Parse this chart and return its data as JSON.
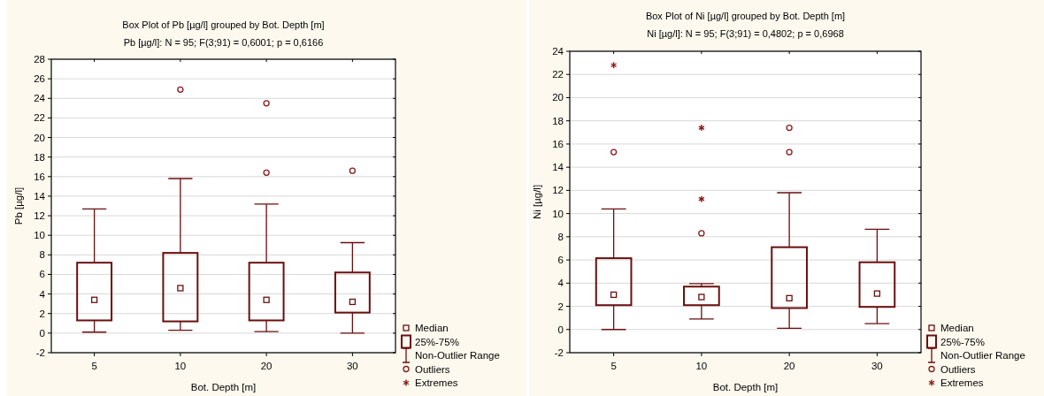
{
  "chart_data": [
    {
      "type": "box",
      "title": "Box Plot of Pb [µg/l] grouped by  Bot. Depth [m]",
      "subtitle": "Pb [µg/l]:   N = 95;  F(3;91) = 0,6001; p = 0,6166",
      "xlabel": "Bot. Depth [m]",
      "ylabel": "Pb [µg/l]",
      "categories": [
        "5",
        "10",
        "20",
        "30"
      ],
      "ylim": [
        -2,
        28
      ],
      "yticks": [
        -2,
        0,
        2,
        4,
        6,
        8,
        10,
        12,
        14,
        16,
        18,
        20,
        22,
        24,
        26,
        28
      ],
      "grid": "y",
      "legend": "bottom right",
      "annotations": [
        "Median",
        "25%-75%",
        "Non-Outlier Range"
      ],
      "series": [
        {
          "type": "box",
          "color": "#6b0f0f",
          "boxes": [
            {
              "low": 0.1,
              "q1": 1.3,
              "median": 3.4,
              "q3": 7.2,
              "high": 12.7
            },
            {
              "low": 0.3,
              "q1": 1.2,
              "median": 4.6,
              "q3": 8.2,
              "high": 15.8
            },
            {
              "low": 0.15,
              "q1": 1.3,
              "median": 3.4,
              "q3": 7.2,
              "high": 13.2
            },
            {
              "low": 0,
              "q1": 2.1,
              "median": 3.2,
              "q3": 6.2,
              "high": 9.25
            }
          ]
        },
        {
          "type": "scatter",
          "name": "Outliers",
          "color": "#8b1a1a",
          "marker": "circle",
          "x": [
            "10",
            "20",
            "20",
            "30"
          ],
          "values": [
            24.9,
            23.5,
            16.4,
            16.6
          ]
        },
        {
          "type": "scatter",
          "name": "Extremes",
          "color": "#8b1a1a",
          "marker": "cross",
          "x": [
            "5",
            "10",
            "20",
            "30"
          ],
          "values": [
            null,
            null,
            null,
            null
          ]
        }
      ]
    },
    {
      "type": "box",
      "title": "Box Plot of Ni [µg/l] grouped by  Bot. Depth [m]",
      "subtitle": "Ni [µg/l]:   N = 95;  F(3;91) = 0,4802; p = 0,6968",
      "xlabel": "Bot. Depth [m]",
      "ylabel": "Ni [µg/l]",
      "categories": [
        "5",
        "10",
        "20",
        "30"
      ],
      "ylim": [
        -2,
        24
      ],
      "yticks": [
        -2,
        0,
        2,
        4,
        6,
        8,
        10,
        12,
        14,
        16,
        18,
        20,
        22,
        24
      ],
      "grid": "y",
      "legend": "bottom right",
      "annotations": [
        "Median",
        "25%-75%",
        "Non-Outlier Range"
      ],
      "series": [
        {
          "type": "box",
          "color": "#6b0f0f",
          "boxes": [
            {
              "low": 0,
              "q1": 2.1,
              "median": 3.0,
              "q3": 6.15,
              "high": 10.4
            },
            {
              "low": 0.9,
              "q1": 2.1,
              "median": 2.8,
              "q3": 3.7,
              "high": 3.95
            },
            {
              "low": 0.1,
              "q1": 1.85,
              "median": 2.7,
              "q3": 7.1,
              "high": 11.8
            },
            {
              "low": 0.5,
              "q1": 1.95,
              "median": 3.1,
              "q3": 5.8,
              "high": 8.65
            }
          ]
        },
        {
          "type": "scatter",
          "name": "Outliers",
          "color": "#8b1a1a",
          "marker": "circle",
          "x": [
            "5",
            "10",
            "20",
            "20"
          ],
          "values": [
            15.3,
            8.3,
            17.4,
            15.3
          ]
        },
        {
          "type": "scatter",
          "name": "Extremes",
          "color": "#8b1a1a",
          "marker": "cross",
          "x": [
            "5",
            "10",
            "10"
          ],
          "values": [
            22.8,
            17.4,
            11.25
          ]
        }
      ]
    }
  ]
}
